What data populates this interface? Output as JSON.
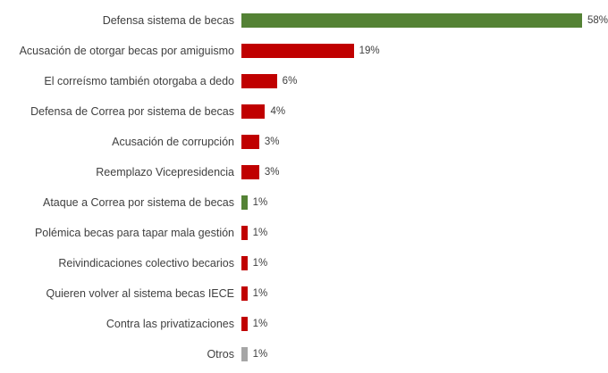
{
  "chart_data": {
    "type": "bar",
    "orientation": "horizontal",
    "title": "",
    "xlabel": "",
    "ylabel": "",
    "xlim": [
      0,
      62
    ],
    "grid": false,
    "legend": false,
    "categories": [
      "Defensa sistema de becas",
      "Acusación de otorgar becas por amiguismo",
      "El correísmo también otorgaba a dedo",
      "Defensa de Correa por sistema de becas",
      "Acusación de corrupción",
      "Reemplazo Vicepresidencia",
      "Ataque a Correa por sistema de becas",
      "Polémica becas para tapar mala gestión",
      "Reivindicaciones colectivo becarios",
      "Quieren volver al sistema becas IECE",
      "Contra las privatizaciones",
      "Otros"
    ],
    "values": [
      58,
      19,
      6,
      4,
      3,
      3,
      1,
      1,
      1,
      1,
      1,
      1
    ],
    "value_labels": [
      "58%",
      "19%",
      "6%",
      "4%",
      "3%",
      "3%",
      "1%",
      "1%",
      "1%",
      "1%",
      "1%",
      "1%"
    ],
    "bar_colors": [
      "#548235",
      "#c00000",
      "#c00000",
      "#c00000",
      "#c00000",
      "#c00000",
      "#548235",
      "#c00000",
      "#c00000",
      "#c00000",
      "#c00000",
      "#a6a6a6"
    ],
    "colors": {
      "green": "#548235",
      "red": "#c00000",
      "gray": "#a6a6a6",
      "label_text": "#404040",
      "background": "#ffffff"
    }
  }
}
